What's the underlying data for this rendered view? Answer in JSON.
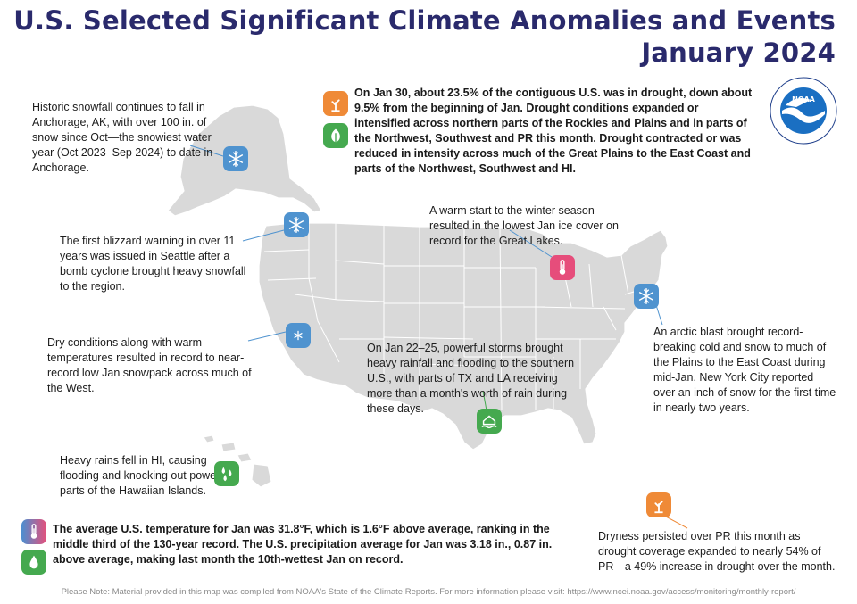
{
  "header": {
    "title_line1": "U.S. Selected Significant Climate Anomalies and Events",
    "title_line2": "January 2024"
  },
  "logo": {
    "name": "NOAA",
    "ring_text": "NATIONAL OCEANIC AND ATMOSPHERIC ADMINISTRATION",
    "bottom_text": "U.S. DEPARTMENT OF COMMERCE"
  },
  "drought_summary": {
    "icons": [
      "drought-plant-icon",
      "drought-improvement-leaf-icon"
    ],
    "text": "On Jan 30, about 23.5% of the contiguous U.S. was in drought, down about 9.5% from the beginning of Jan. Drought conditions expanded or intensified across northern parts of the Rockies and Plains and in parts of the Northwest, Southwest and PR this month. Drought contracted or was reduced in intensity across much of the Great Plains to the East Coast and parts of the Northwest, Southwest and HI."
  },
  "annotations": {
    "anchorage": {
      "icon": "snowflake-icon",
      "text": "Historic snowfall continues to fall in Anchorage, AK, with over 100 in. of snow since Oct—the snowiest water year (Oct 2023–Sep 2024) to date in Anchorage."
    },
    "seattle": {
      "icon": "snowflake-icon",
      "text": "The first blizzard warning in over 11 years was issued in Seattle after a bomb cyclone brought heavy snowfall to the region."
    },
    "west_snowpack": {
      "icon": "small-snowflake-icon",
      "text": "Dry conditions along with warm temperatures resulted in record to near-record low Jan snowpack across much of the West."
    },
    "great_lakes": {
      "icon": "thermometer-icon",
      "text": "A warm start to the winter season resulted in the lowest Jan ice cover on record for the Great Lakes."
    },
    "arctic_blast": {
      "icon": "snowflake-icon",
      "text": "An arctic blast brought record-breaking cold and snow to much of the Plains to the East Coast during mid-Jan. New York City reported over an inch of snow for the first time in nearly two years."
    },
    "southern_storms": {
      "icon": "flood-house-icon",
      "text": "On Jan 22–25, powerful storms brought heavy rainfall and flooding to the southern U.S., with parts of TX and LA receiving more than a month's worth of rain during these days."
    },
    "hawaii": {
      "icon": "raindrops-icon",
      "text": "Heavy rains fell in HI, causing flooding and knocking out power to parts of the Hawaiian Islands."
    },
    "puerto_rico": {
      "icon": "drought-plant-icon",
      "text": "Dryness persisted over PR this month as drought coverage expanded to nearly 54% of PR—a 49% increase in drought over the month."
    }
  },
  "national_summary": {
    "icons": [
      "thermometer-icon",
      "water-drop-icon"
    ],
    "text": "The average U.S. temperature for Jan was 31.8°F, which is 1.6°F above average, ranking in the middle third of the 130-year record. The U.S. precipitation average for Jan was 3.18 in., 0.87 in. above average, making last month the 10th-wettest Jan on record."
  },
  "footer": {
    "text": "Please Note: Material provided in this map was compiled from NOAA's State of the Climate Reports. For more information please visit: https://www.ncei.noaa.gov/access/monitoring/monthly-report/"
  },
  "colors": {
    "title": "#2a2a6c",
    "land": "#d9d9d9",
    "border": "#ffffff",
    "snow_icon": "#4f93cf",
    "drought_icon": "#ef8a37",
    "wet_icon": "#45a94f",
    "warm_icon": "#e64d7b",
    "leader_blue": "#4f93cf",
    "leader_orange": "#ef8a37",
    "leader_pink": "#e64d7b"
  }
}
